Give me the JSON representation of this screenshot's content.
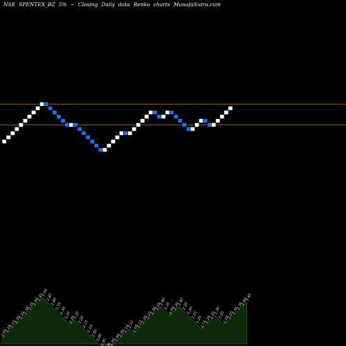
{
  "title": {
    "exchange": "NSE",
    "symbol": "SPENTEX_BZ",
    "change": "5%",
    "arrow": "~",
    "mode": "Closing",
    "interval": "Daily",
    "data_word": "data",
    "chart_kind": "Renko",
    "charts_word": "charts",
    "source": "MunafaSutra.com"
  },
  "colors": {
    "background": "#000000",
    "up_brick": "#ffffff",
    "down_brick": "#1e6fe6",
    "reference_line": "#b8731b",
    "area_fill": "#0a2a0a",
    "area_stroke": "#1f5a1f",
    "label": "#ffffff"
  },
  "chart_data": {
    "type": "renko",
    "box_size": 0.05,
    "y_range": [
      1.65,
      2.9
    ],
    "reference_levels": [
      2.9,
      2.8
    ],
    "bricks": [
      {
        "direction": "up",
        "value": 2.05
      },
      {
        "direction": "up",
        "value": 2.1
      },
      {
        "direction": "up",
        "value": 2.15
      },
      {
        "direction": "up",
        "value": 2.2
      },
      {
        "direction": "up",
        "value": 2.25
      },
      {
        "direction": "up",
        "value": 2.3
      },
      {
        "direction": "up",
        "value": 2.35
      },
      {
        "direction": "up",
        "value": 2.4
      },
      {
        "direction": "up",
        "value": 2.45
      },
      {
        "direction": "up",
        "value": 2.5
      },
      {
        "direction": "down",
        "value": 2.45
      },
      {
        "direction": "down",
        "value": 2.4
      },
      {
        "direction": "down",
        "value": 2.35
      },
      {
        "direction": "down",
        "value": 2.3
      },
      {
        "direction": "down",
        "value": 2.25
      },
      {
        "direction": "down",
        "value": 2.2
      },
      {
        "direction": "up",
        "value": 2.25
      },
      {
        "direction": "down",
        "value": 2.2
      },
      {
        "direction": "down",
        "value": 2.15
      },
      {
        "direction": "down",
        "value": 2.1
      },
      {
        "direction": "down",
        "value": 2.05
      },
      {
        "direction": "down",
        "value": 2.0
      },
      {
        "direction": "down",
        "value": 1.95
      },
      {
        "direction": "down",
        "value": 1.9
      },
      {
        "direction": "up",
        "value": 1.95
      },
      {
        "direction": "up",
        "value": 2.0
      },
      {
        "direction": "up",
        "value": 2.05
      },
      {
        "direction": "up",
        "value": 2.1
      },
      {
        "direction": "up",
        "value": 2.15
      },
      {
        "direction": "down",
        "value": 2.1
      },
      {
        "direction": "up",
        "value": 2.15
      },
      {
        "direction": "up",
        "value": 2.2
      },
      {
        "direction": "up",
        "value": 2.25
      },
      {
        "direction": "up",
        "value": 2.3
      },
      {
        "direction": "up",
        "value": 2.35
      },
      {
        "direction": "up",
        "value": 2.4
      },
      {
        "direction": "down",
        "value": 2.35
      },
      {
        "direction": "down",
        "value": 2.3
      },
      {
        "direction": "up",
        "value": 2.35
      },
      {
        "direction": "up",
        "value": 2.4
      },
      {
        "direction": "down",
        "value": 2.35
      },
      {
        "direction": "down",
        "value": 2.3
      },
      {
        "direction": "down",
        "value": 2.25
      },
      {
        "direction": "down",
        "value": 2.2
      },
      {
        "direction": "down",
        "value": 2.15
      },
      {
        "direction": "up",
        "value": 2.2
      },
      {
        "direction": "up",
        "value": 2.25
      },
      {
        "direction": "up",
        "value": 2.3
      },
      {
        "direction": "down",
        "value": 2.25
      },
      {
        "direction": "down",
        "value": 2.2
      },
      {
        "direction": "up",
        "value": 2.25
      },
      {
        "direction": "up",
        "value": 2.3
      },
      {
        "direction": "up",
        "value": 2.35
      },
      {
        "direction": "up",
        "value": 2.4
      },
      {
        "direction": "up",
        "value": 2.45
      }
    ],
    "price_labels": [
      "2.05",
      "2.10",
      "2.15",
      "2.20",
      "2.25",
      "2.30",
      "2.35",
      "2.40",
      "2.45",
      "2.50",
      "2.45",
      "2.40",
      "2.35",
      "2.30",
      "2.25",
      "2.20",
      "2.25",
      "2.20",
      "2.15",
      "2.10",
      "2.05",
      "2.00",
      "1.95",
      "1.90",
      "1.95",
      "2.00",
      "2.05",
      "2.10",
      "2.15",
      "2.10",
      "2.15",
      "2.20",
      "2.25",
      "2.30",
      "2.35",
      "2.40",
      "2.35",
      "2.30",
      "2.35",
      "2.40",
      "2.35",
      "2.30",
      "2.25",
      "2.20",
      "2.15",
      "2.20",
      "2.25",
      "2.30",
      "2.25",
      "2.20",
      "2.25",
      "2.30",
      "2.35",
      "2.40",
      "2.45"
    ]
  }
}
